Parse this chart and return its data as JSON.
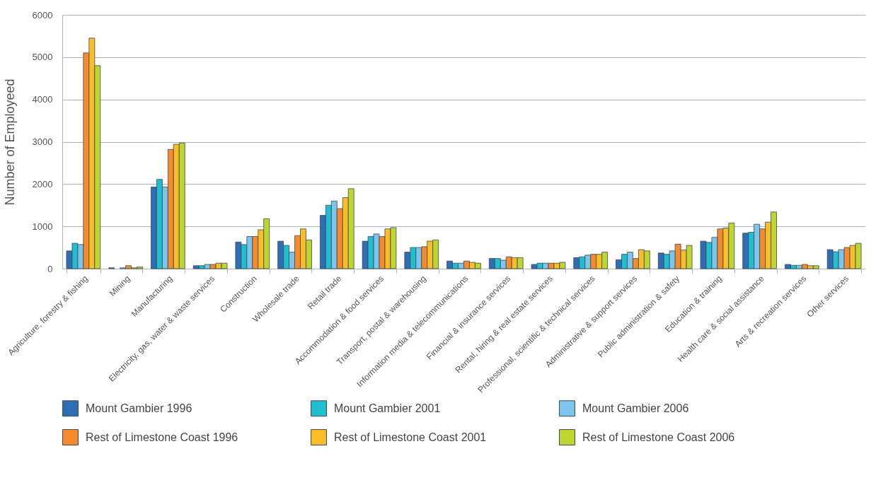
{
  "chart_data": {
    "type": "bar",
    "ylabel": "Number of Employeed",
    "categories": [
      "Agriculture, forestry & fishing",
      "Mining",
      "Manufacturing",
      "Electricity, gas, water & waste services",
      "Construction",
      "Wholesale trade",
      "Retail trade",
      "Accommodation & food services",
      "Transport, postal & warehousing",
      "Information media & telecommunications",
      "Financial & insurance services",
      "Rental, hiring & real estate services",
      "Professional, scientific & technical services",
      "Administrative & support services",
      "Public administration & safety",
      "Education & training",
      "Health care & social assistance",
      "Arts & recreation services",
      "Other services"
    ],
    "series": [
      {
        "name": "Mount Gambier 1996",
        "color": "#2f6db5",
        "values": [
          420,
          20,
          1930,
          70,
          630,
          650,
          1260,
          650,
          390,
          180,
          240,
          100,
          260,
          210,
          370,
          650,
          840,
          100,
          450
        ]
      },
      {
        "name": "Mount Gambier 2001",
        "color": "#1fbfd0",
        "values": [
          600,
          null,
          2110,
          70,
          570,
          550,
          1500,
          760,
          500,
          130,
          240,
          130,
          280,
          340,
          340,
          620,
          860,
          80,
          400
        ]
      },
      {
        "name": "Mount Gambier 2006",
        "color": "#7cc6ee",
        "values": [
          570,
          20,
          1930,
          100,
          760,
          390,
          1600,
          820,
          500,
          130,
          200,
          130,
          320,
          390,
          420,
          740,
          1050,
          80,
          450
        ]
      },
      {
        "name": "Rest of Limestone Coast 1996",
        "color": "#f68b2c",
        "values": [
          5100,
          70,
          2820,
          100,
          760,
          780,
          1420,
          760,
          520,
          180,
          280,
          130,
          340,
          240,
          580,
          940,
          940,
          100,
          500
        ]
      },
      {
        "name": "Rest of Limestone Coast 2001",
        "color": "#fcbd27",
        "values": [
          5450,
          20,
          2940,
          130,
          920,
          940,
          1680,
          940,
          650,
          150,
          260,
          130,
          340,
          450,
          440,
          960,
          1100,
          70,
          550
        ]
      },
      {
        "name": "Rest of Limestone Coast 2006",
        "color": "#bfd630",
        "values": [
          4800,
          40,
          2970,
          130,
          1180,
          680,
          1890,
          970,
          680,
          130,
          260,
          150,
          390,
          420,
          550,
          1080,
          1340,
          70,
          600
        ]
      }
    ],
    "ylim": [
      0,
      6000
    ],
    "yticks": [
      0,
      1000,
      2000,
      3000,
      4000,
      5000,
      6000
    ],
    "grid": "y",
    "legend": "bottom"
  }
}
